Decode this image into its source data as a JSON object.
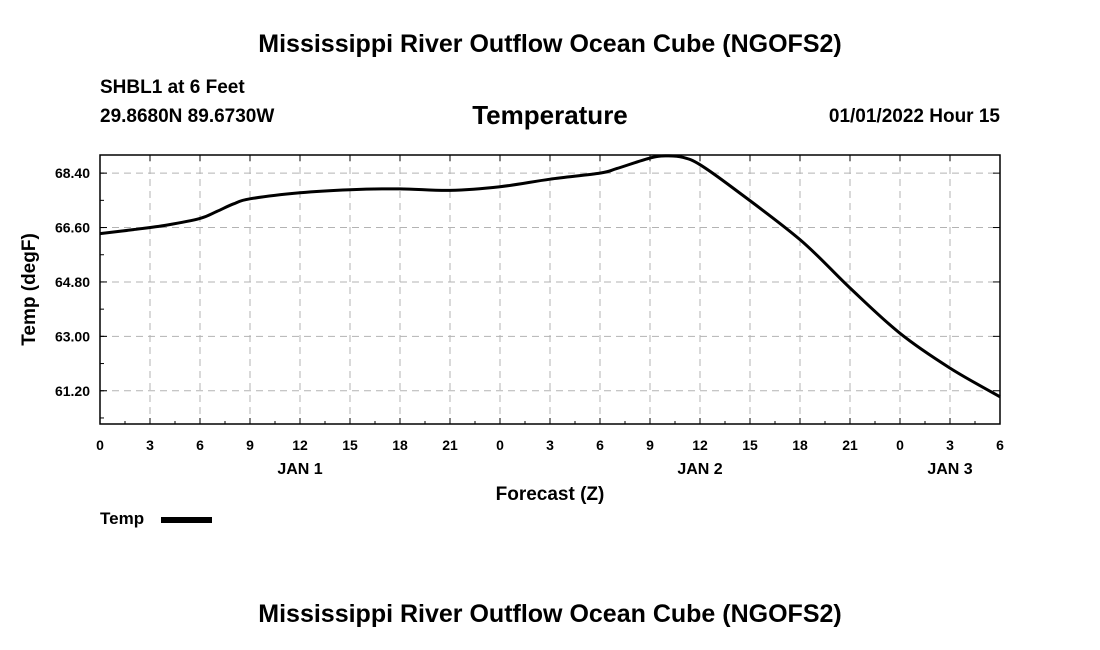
{
  "header": {
    "main_title": "Mississippi River Outflow Ocean Cube (NGOFS2)",
    "station": "SHBL1 at 6 Feet",
    "coords": "29.8680N  89.6730W",
    "panel_title": "Temperature",
    "datetime": "01/01/2022 Hour 15"
  },
  "footer": {
    "main_title": "Mississippi River Outflow Ocean Cube (NGOFS2)"
  },
  "legend": {
    "label": "Temp"
  },
  "chart_data": {
    "type": "line",
    "title": "Temperature",
    "xlabel": "Forecast (Z)",
    "ylabel": "Temp (degF)",
    "xlim": [
      0,
      54
    ],
    "ylim": [
      60.1,
      69.0
    ],
    "grid": true,
    "x_ticks": [
      0,
      3,
      6,
      9,
      12,
      15,
      18,
      21,
      24,
      27,
      30,
      33,
      36,
      39,
      42,
      45,
      48,
      51,
      54
    ],
    "x_tick_labels": [
      "0",
      "3",
      "6",
      "9",
      "12",
      "15",
      "18",
      "21",
      "0",
      "3",
      "6",
      "9",
      "12",
      "15",
      "18",
      "21",
      "0",
      "3",
      "6"
    ],
    "day_labels": [
      {
        "x": 12,
        "label": "JAN 1"
      },
      {
        "x": 36,
        "label": "JAN 2"
      },
      {
        "x": 51,
        "label": "JAN 3"
      }
    ],
    "y_ticks": [
      61.2,
      63.0,
      64.8,
      66.6,
      68.4
    ],
    "y_tick_labels": [
      "61.20",
      "63.00",
      "64.80",
      "66.60",
      "68.40"
    ],
    "series": [
      {
        "name": "Temp",
        "color": "#000000",
        "x": [
          0,
          2,
          4,
          6,
          7,
          8,
          9,
          12,
          15,
          18,
          21,
          24,
          27,
          30,
          31,
          33,
          34,
          35,
          36,
          38,
          42,
          45,
          48,
          51,
          54
        ],
        "y": [
          66.4,
          66.53,
          66.68,
          66.9,
          67.13,
          67.38,
          67.55,
          67.75,
          67.85,
          67.88,
          67.83,
          67.95,
          68.2,
          68.4,
          68.55,
          68.9,
          68.97,
          68.92,
          68.68,
          67.9,
          66.2,
          64.6,
          63.1,
          61.95,
          61.0
        ]
      }
    ]
  }
}
